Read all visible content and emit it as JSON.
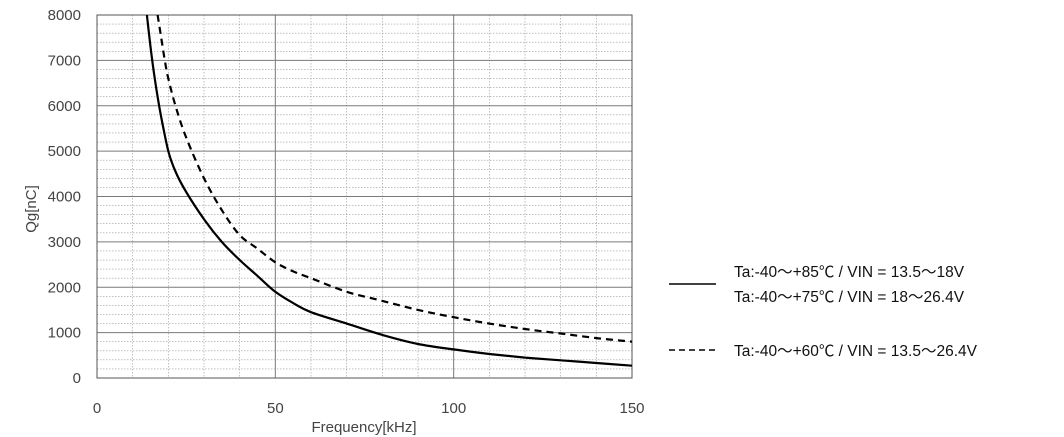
{
  "chart_data": {
    "type": "line",
    "title": "",
    "xlabel": "Frequency[kHz]",
    "ylabel": "Qg[nC]",
    "xlim": [
      0,
      150
    ],
    "ylim": [
      0,
      8000
    ],
    "x_ticks": [
      0,
      50,
      100,
      150
    ],
    "y_ticks": [
      0,
      1000,
      2000,
      3000,
      4000,
      5000,
      6000,
      7000,
      8000
    ],
    "grid": true,
    "minor_grid": true,
    "legend_position": "right",
    "series": [
      {
        "name": "Ta:-40～+85℃ / VIN = 13.5～18V",
        "name_line2": "Ta:-40～+75℃ / VIN = 18～26.4V",
        "style": "solid",
        "color": "#000000",
        "x": [
          14,
          15,
          16,
          17,
          18,
          20,
          22,
          25,
          30,
          35,
          40,
          45,
          50,
          55,
          60,
          70,
          80,
          90,
          100,
          110,
          120,
          130,
          140,
          150
        ],
        "y": [
          8000,
          7300,
          6700,
          6200,
          5750,
          5000,
          4550,
          4100,
          3500,
          3000,
          2600,
          2250,
          1900,
          1650,
          1450,
          1200,
          950,
          750,
          630,
          530,
          450,
          390,
          330,
          270
        ]
      },
      {
        "name": "Ta:-40～+60℃ / VIN = 13.5～26.4V",
        "style": "dashed",
        "color": "#000000",
        "x": [
          17,
          18,
          19,
          20,
          22,
          25,
          30,
          35,
          40,
          45,
          50,
          55,
          60,
          70,
          80,
          90,
          100,
          110,
          120,
          130,
          140,
          150
        ],
        "y": [
          8000,
          7500,
          7000,
          6600,
          6000,
          5300,
          4400,
          3700,
          3150,
          2850,
          2550,
          2350,
          2200,
          1900,
          1700,
          1500,
          1340,
          1200,
          1080,
          980,
          880,
          800
        ]
      }
    ]
  }
}
